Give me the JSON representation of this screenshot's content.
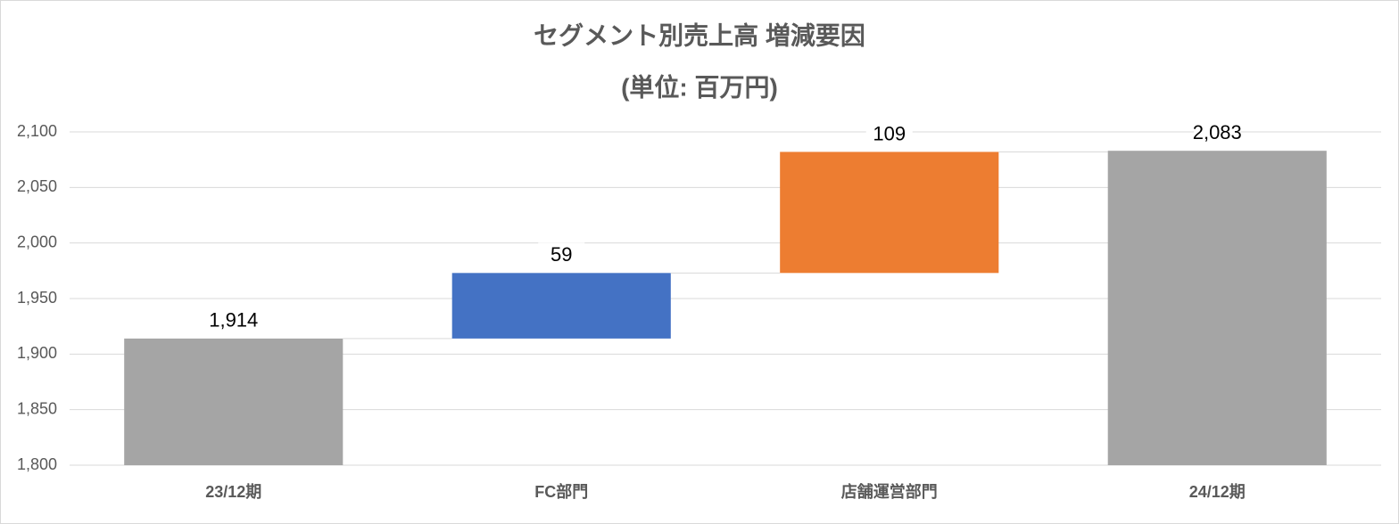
{
  "chart_data": {
    "type": "waterfall",
    "title": "セグメント別売上高 増減要因",
    "subtitle": "(単位: 百万円)",
    "categories": [
      "23/12期",
      "FC部門",
      "店舗運営部門",
      "24/12期"
    ],
    "values": [
      1914,
      59,
      109,
      2083
    ],
    "value_labels": [
      "1,914",
      "59",
      "109",
      "2,083"
    ],
    "measure": [
      "total",
      "relative",
      "relative",
      "total"
    ],
    "colors": [
      "#a5a5a5",
      "#4472c4",
      "#ed7d31",
      "#a5a5a5"
    ],
    "ylim": [
      1800,
      2100
    ],
    "yticks": [
      {
        "value": 1800,
        "label": "1,800"
      },
      {
        "value": 1850,
        "label": "1,850"
      },
      {
        "value": 1900,
        "label": "1,900"
      },
      {
        "value": 1950,
        "label": "1,950"
      },
      {
        "value": 2000,
        "label": "2,000"
      },
      {
        "value": 2050,
        "label": "2,050"
      },
      {
        "value": 2100,
        "label": "2,100"
      }
    ],
    "grid": true
  }
}
